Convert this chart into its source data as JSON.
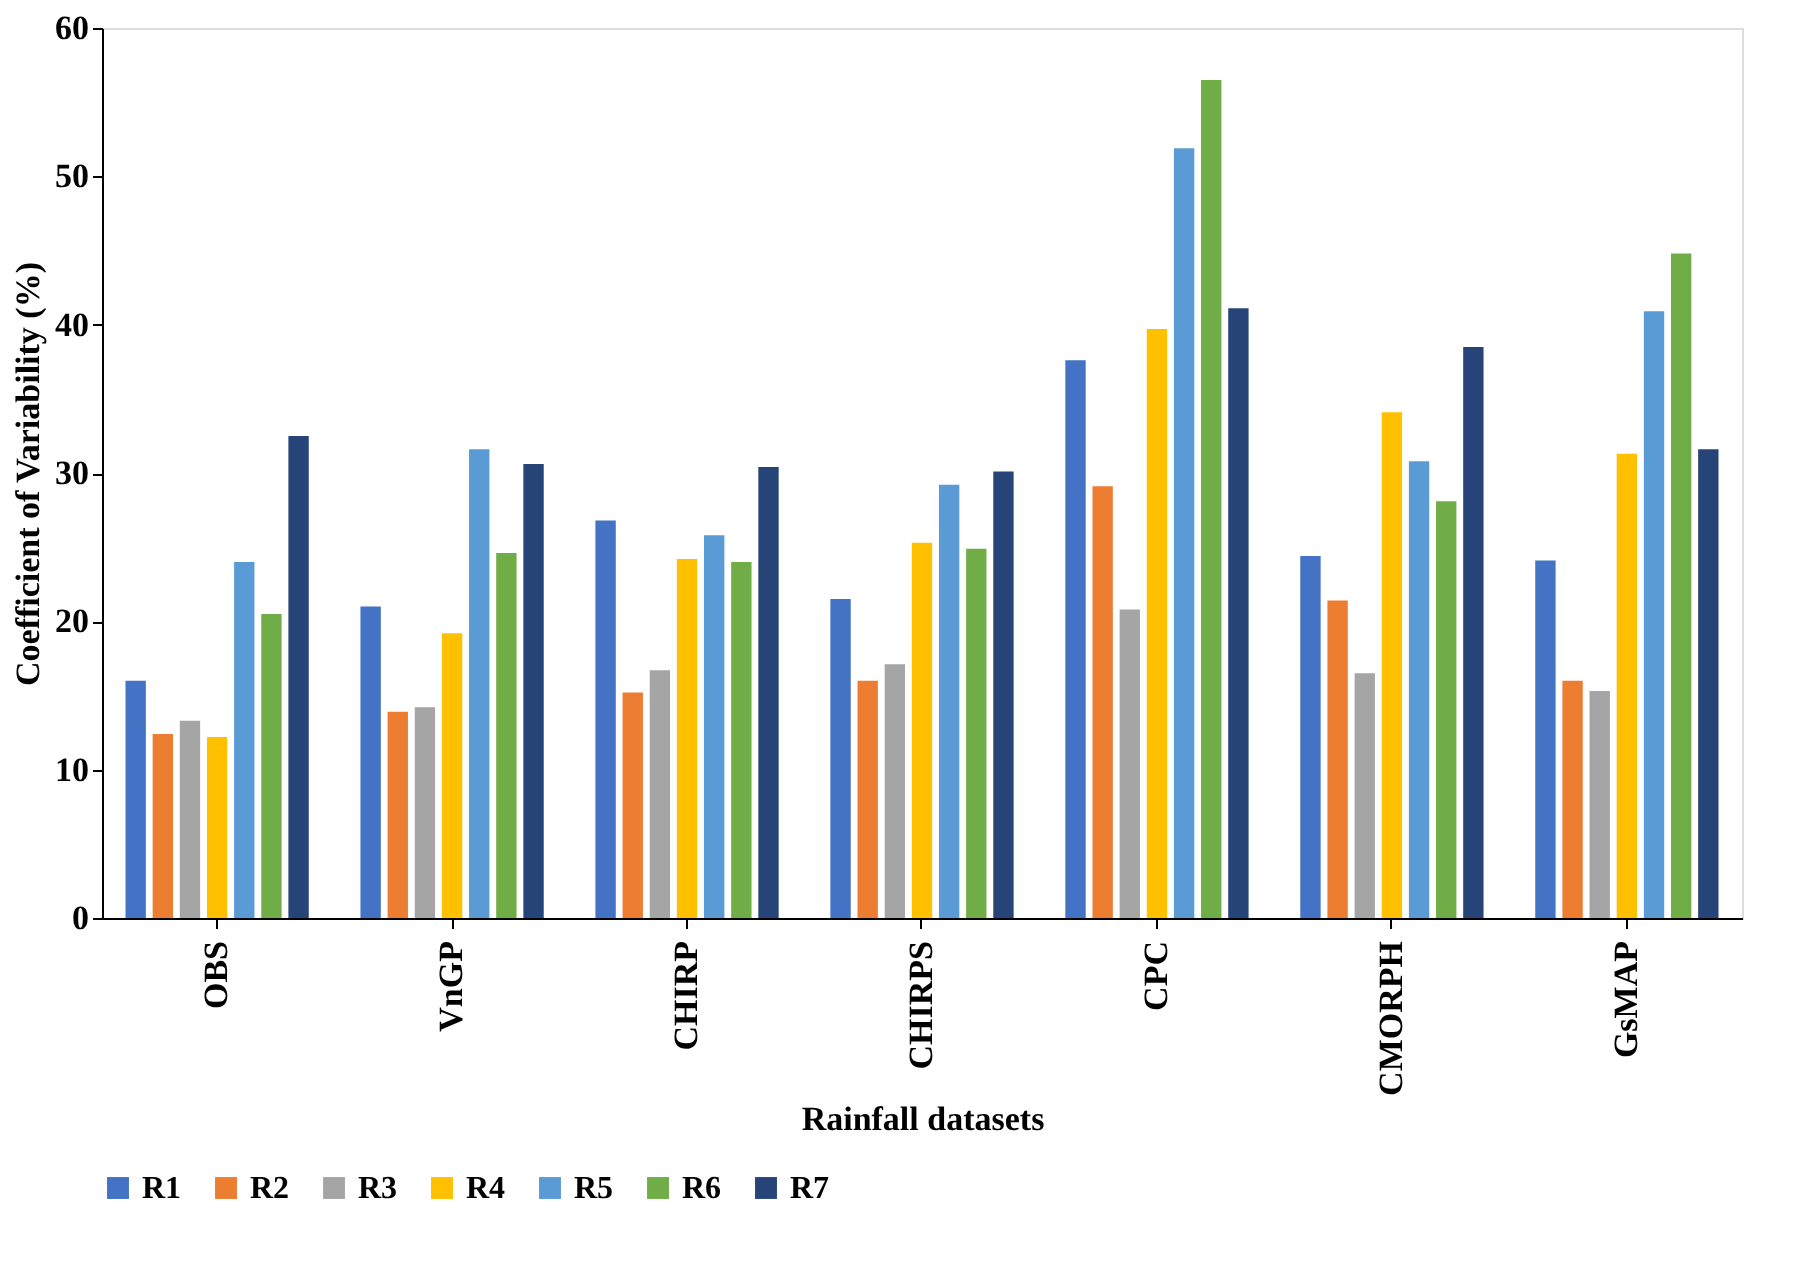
{
  "chart_data": {
    "type": "bar",
    "xlabel": "Rainfall datasets",
    "ylabel": "Coefficient of Variability  (%)",
    "categories": [
      "OBS",
      "VnGP",
      "CHIRP",
      "CHIRPS",
      "CPC",
      "CMORPH",
      "GsMAP"
    ],
    "series": [
      {
        "name": "R1",
        "color": "#4472c4",
        "values": [
          16,
          21,
          26.8,
          21.5,
          37.6,
          24.4,
          24.1
        ]
      },
      {
        "name": "R2",
        "color": "#ed7d31",
        "values": [
          12.4,
          13.9,
          15.2,
          16,
          29.1,
          21.4,
          16
        ]
      },
      {
        "name": "R3",
        "color": "#a5a5a5",
        "values": [
          13.3,
          14.2,
          16.7,
          17.1,
          20.8,
          16.5,
          15.3
        ]
      },
      {
        "name": "R4",
        "color": "#ffc000",
        "values": [
          12.2,
          19.2,
          24.2,
          25.3,
          39.7,
          34.1,
          31.3
        ]
      },
      {
        "name": "R5",
        "color": "#5b9bd5",
        "values": [
          24,
          31.6,
          25.8,
          29.2,
          51.9,
          30.8,
          40.9
        ]
      },
      {
        "name": "R6",
        "color": "#70ad47",
        "values": [
          20.5,
          24.6,
          24,
          24.9,
          56.5,
          28.1,
          44.8
        ]
      },
      {
        "name": "R7",
        "color": "#264478",
        "values": [
          32.5,
          30.6,
          30.4,
          30.1,
          41.1,
          38.5,
          31.6
        ]
      }
    ],
    "ylim": [
      0,
      60
    ],
    "yticks": [
      0,
      10,
      20,
      30,
      40,
      50,
      60
    ],
    "grid": false,
    "legend": "bottom"
  }
}
